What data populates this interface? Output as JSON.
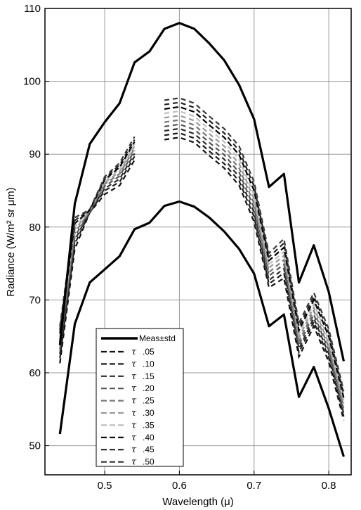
{
  "chart_data": {
    "type": "line",
    "title": "",
    "xlabel": "Wavelength (μ)",
    "ylabel": "Radiance (W/m² sr μm)",
    "xlim": [
      0.42,
      0.83
    ],
    "ylim": [
      46,
      110
    ],
    "xticks": [
      0.5,
      0.6,
      0.7,
      0.8
    ],
    "xtick_labels": [
      "0.5",
      "0.6",
      "0.7",
      "0.8"
    ],
    "yticks": [
      50,
      60,
      70,
      80,
      90,
      100,
      110
    ],
    "ytick_labels": [
      "50",
      "60",
      "70",
      "80",
      "90",
      "100",
      "110"
    ],
    "grid": true,
    "legend_position": "bottom-left",
    "legend_title": "Meas±std",
    "tau_symbol": "τ",
    "measurement": {
      "name": "Meas±std",
      "color": "#000000",
      "upper": {
        "x": [
          0.44,
          0.46,
          0.48,
          0.5,
          0.52,
          0.54,
          0.56,
          0.58,
          0.6,
          0.62,
          0.64,
          0.66,
          0.68,
          0.7,
          0.72,
          0.74,
          0.76,
          0.78,
          0.8,
          0.82
        ],
        "y": [
          63.8,
          83.2,
          91.4,
          94.4,
          97.0,
          102.6,
          104.1,
          107.2,
          108.0,
          107.2,
          105.2,
          102.9,
          99.5,
          94.8,
          85.5,
          87.3,
          72.4,
          77.5,
          71.1,
          61.6
        ]
      },
      "lower": {
        "x": [
          0.44,
          0.46,
          0.48,
          0.5,
          0.52,
          0.54,
          0.56,
          0.58,
          0.6,
          0.62,
          0.64,
          0.66,
          0.68,
          0.7,
          0.72,
          0.74,
          0.76,
          0.78,
          0.8,
          0.82
        ],
        "y": [
          51.6,
          66.7,
          72.4,
          74.2,
          76.0,
          79.7,
          80.6,
          82.9,
          83.5,
          82.8,
          81.3,
          79.4,
          77.0,
          73.6,
          66.4,
          68.0,
          56.7,
          60.8,
          55.1,
          48.5
        ]
      }
    },
    "x": [
      0.44,
      0.46,
      0.48,
      0.5,
      0.52,
      0.54,
      0.58,
      0.6,
      0.62,
      0.64,
      0.66,
      0.68,
      0.7,
      0.72,
      0.74,
      0.76,
      0.78,
      0.8,
      0.82
    ],
    "series": [
      {
        "name": ".05",
        "color": "#111111",
        "values": [
          61.3,
          77.0,
          82.0,
          84.5,
          85.7,
          89.2,
          92.0,
          92.3,
          91.6,
          89.8,
          88.1,
          85.7,
          80.7,
          71.7,
          73.0,
          62.2,
          66.4,
          61.5,
          53.5
        ]
      },
      {
        "name": ".10",
        "color": "#1c1c1c",
        "values": [
          62.0,
          77.7,
          82.0,
          85.0,
          86.2,
          89.7,
          92.6,
          92.9,
          92.2,
          90.4,
          88.7,
          86.3,
          81.4,
          72.2,
          73.7,
          62.8,
          67.0,
          62.1,
          54.0
        ]
      },
      {
        "name": ".15",
        "color": "#2a2a2a",
        "values": [
          62.6,
          78.2,
          82.1,
          85.3,
          86.6,
          90.1,
          93.2,
          93.5,
          92.8,
          91.0,
          89.3,
          86.9,
          82.0,
          72.7,
          74.3,
          63.3,
          67.5,
          62.6,
          54.4
        ]
      },
      {
        "name": ".20",
        "color": "#555555",
        "values": [
          63.2,
          78.7,
          82.1,
          85.6,
          87.0,
          90.5,
          93.8,
          94.1,
          93.4,
          91.6,
          89.9,
          87.5,
          82.6,
          73.3,
          74.9,
          63.8,
          68.0,
          63.1,
          54.9
        ]
      },
      {
        "name": ".25",
        "color": "#777777",
        "values": [
          63.8,
          79.2,
          82.2,
          85.9,
          87.3,
          90.8,
          94.4,
          94.7,
          94.0,
          92.2,
          90.5,
          88.1,
          83.2,
          73.8,
          75.5,
          64.3,
          68.5,
          63.5,
          55.3
        ]
      },
      {
        "name": ".30",
        "color": "#9a9a9a",
        "values": [
          64.4,
          79.7,
          82.2,
          86.1,
          87.6,
          91.1,
          95.0,
          95.3,
          94.6,
          92.8,
          91.1,
          88.7,
          83.8,
          74.4,
          76.1,
          64.8,
          69.0,
          64.0,
          55.8
        ]
      },
      {
        "name": ".35",
        "color": "#bdbdbd",
        "values": [
          64.9,
          80.1,
          82.3,
          86.3,
          87.9,
          91.4,
          95.6,
          95.9,
          95.2,
          93.4,
          91.7,
          89.3,
          84.4,
          74.9,
          76.6,
          65.3,
          69.5,
          64.5,
          56.2
        ]
      },
      {
        "name": ".40",
        "color": "#000000",
        "values": [
          65.4,
          80.5,
          82.3,
          86.5,
          88.2,
          91.7,
          96.2,
          96.5,
          95.8,
          94.0,
          92.3,
          89.9,
          85.0,
          75.4,
          77.2,
          65.8,
          70.0,
          65.0,
          56.6
        ]
      },
      {
        "name": ".45",
        "color": "#222222",
        "values": [
          65.9,
          80.9,
          82.4,
          86.7,
          88.5,
          92.0,
          96.8,
          97.1,
          96.4,
          94.6,
          92.9,
          90.5,
          85.6,
          75.9,
          77.8,
          66.3,
          70.5,
          65.5,
          57.1
        ]
      },
      {
        "name": ".50",
        "color": "#3a3a3a",
        "values": [
          66.4,
          81.3,
          82.4,
          86.9,
          88.8,
          92.4,
          97.4,
          97.7,
          97.0,
          95.2,
          93.5,
          91.1,
          86.2,
          76.4,
          78.4,
          66.8,
          71.0,
          66.0,
          57.5
        ]
      }
    ]
  }
}
